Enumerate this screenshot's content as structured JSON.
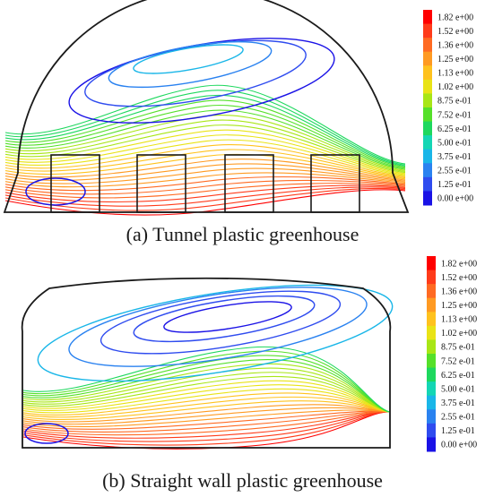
{
  "panels": [
    {
      "caption": "(a) Tunnel plastic greenhouse",
      "legend_values": [
        "1.82 e+00",
        "1.52 e+00",
        "1.36 e+00",
        "1.25 e+00",
        "1.13 e+00",
        "1.02 e+00",
        "8.75 e-01",
        "7.52 e-01",
        "6.25 e-01",
        "5.00 e-01",
        "3.75 e-01",
        "2.55 e-01",
        "1.25 e-01",
        "0.00 e+00"
      ]
    },
    {
      "caption": "(b) Straight wall plastic greenhouse",
      "legend_values": [
        "1.82 e+00",
        "1.52 e+00",
        "1.36 e+00",
        "1.25 e+00",
        "1.13 e+00",
        "1.02 e+00",
        "8.75 e-01",
        "7.52 e-01",
        "6.25 e-01",
        "5.00 e-01",
        "3.75 e-01",
        "2.55 e-01",
        "1.25 e-01",
        "0.00 e+00"
      ]
    }
  ],
  "legend_colors": [
    "#ff0000",
    "#ff3b1a",
    "#ff6a22",
    "#ff9a22",
    "#ffc21e",
    "#e9e316",
    "#a8e616",
    "#55e02a",
    "#1ed85e",
    "#14d6b4",
    "#19b6e8",
    "#2a82f0",
    "#2f4cef",
    "#1a12e6"
  ]
}
